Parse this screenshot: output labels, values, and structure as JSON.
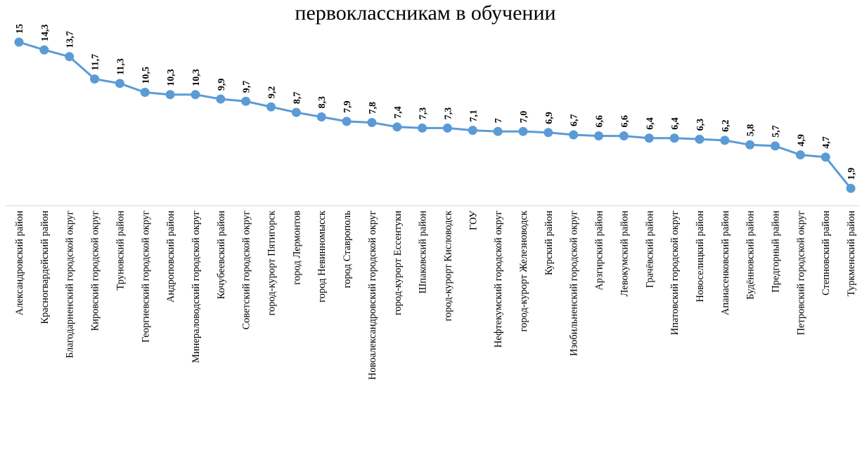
{
  "chart_data": {
    "type": "line",
    "title": "первоклассникам  в  обучении",
    "categories": [
      "Александровский район",
      "Красногвардейский район",
      "Благодарненский городской округ",
      "Кировский городской округ",
      "Труновский район",
      "Георгиевский городской округ",
      "Андроповский район",
      "Минераловодский городской округ",
      "Кочубеевский район",
      "Советский городской округ",
      "город-курорт Пятигорск",
      "город Лермонтов",
      "город Невинномысск",
      "город Ставрополь",
      "Новоалександровский городской округ",
      "город-курорт Ессентуки",
      "Шпаковский район",
      "город-курорт Кисловодск",
      "ГОУ",
      "Нефтекумский городской округ",
      "город-курорт Железноводск",
      "Курский район",
      "Изобильненский городской округ",
      "Арзгирский район",
      "Левокумский район",
      "Грачёвский район",
      "Ипатовский городской округ",
      "Новоселицкий район",
      "Апанасенковский район",
      "Будённовский район",
      "Предгорный район",
      "Петровский городской округ",
      "Степновский район",
      "Туркменский район"
    ],
    "values": [
      15,
      14.3,
      13.7,
      11.7,
      11.3,
      10.5,
      10.3,
      10.3,
      9.9,
      9.7,
      9.2,
      8.7,
      8.3,
      7.9,
      7.8,
      7.4,
      7.3,
      7.3,
      7.1,
      7,
      7.0,
      6.9,
      6.7,
      6.6,
      6.6,
      6.4,
      6.4,
      6.3,
      6.2,
      5.8,
      5.7,
      4.9,
      4.7,
      1.9
    ],
    "value_labels": [
      "15",
      "14,3",
      "13,7",
      "11,7",
      "11,3",
      "10,5",
      "10,3",
      "10,3",
      "9,9",
      "9,7",
      "9,2",
      "8,7",
      "8,3",
      "7,9",
      "7,8",
      "7,4",
      "7,3",
      "7,3",
      "7,1",
      "7",
      "7,0",
      "6,9",
      "6,7",
      "6,6",
      "6,6",
      "6,4",
      "6,4",
      "6,3",
      "6,2",
      "5,8",
      "5,7",
      "4,9",
      "4,7",
      "1,9"
    ],
    "ylim": [
      0,
      16
    ],
    "grid": false,
    "legend": "none",
    "line_color": "#5b9bd5",
    "marker_color": "#5b9bd5",
    "axis_color": "#d9d9d9"
  }
}
